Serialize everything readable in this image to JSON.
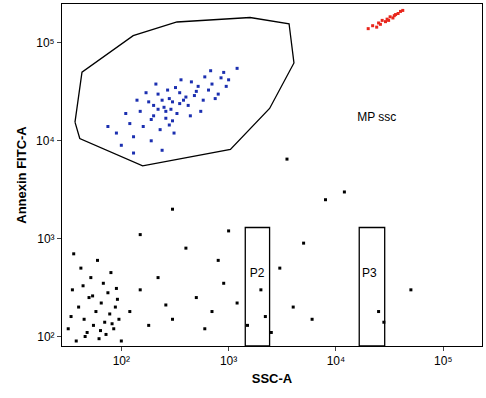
{
  "chart_data": {
    "type": "scatter",
    "x_label": "SSC-A",
    "y_label": "Annexin FITC-A",
    "log": true,
    "grid": false,
    "marker": "square",
    "xlim": [
      28,
      230000
    ],
    "ylim": [
      80,
      250000
    ],
    "xticks": [
      {
        "value": 100,
        "label": "10²"
      },
      {
        "value": 1000,
        "label": "10³"
      },
      {
        "value": 10000,
        "label": "10⁴"
      },
      {
        "value": 100000,
        "label": "10⁵"
      }
    ],
    "yticks": [
      {
        "value": 100,
        "label": "10²"
      },
      {
        "value": 1000,
        "label": "10³"
      },
      {
        "value": 10000,
        "label": "10⁴"
      },
      {
        "value": 100000,
        "label": "10⁵"
      }
    ],
    "series": [
      {
        "color": "#1b2fb0",
        "x": [
          120,
          150,
          180,
          200,
          220,
          250,
          280,
          300,
          320,
          350,
          400,
          450,
          500,
          550,
          600,
          700,
          800,
          900,
          1000,
          1200,
          90,
          100,
          130,
          160,
          190,
          230,
          260,
          290,
          330,
          380,
          420,
          480,
          520,
          650,
          750,
          850,
          110,
          140,
          170,
          210,
          240,
          270,
          310,
          360,
          440,
          580,
          680,
          950,
          75,
          130,
          200,
          240,
          260,
          300,
          190,
          220,
          350,
          280
        ],
        "y": [
          15000,
          20000,
          25000,
          18000,
          30000,
          22000,
          27000,
          16000,
          35000,
          24000,
          28000,
          40000,
          32000,
          20000,
          45000,
          38000,
          30000,
          50000,
          42000,
          55000,
          12000,
          9000,
          11000,
          14000,
          10000,
          13000,
          17000,
          21000,
          19000,
          26000,
          23000,
          29000,
          36000,
          33000,
          27000,
          44000,
          19000,
          26000,
          31000,
          38000,
          8000,
          33000,
          12000,
          42000,
          18000,
          26000,
          52000,
          36000,
          14000,
          7500,
          23000,
          26000,
          20000,
          25000,
          16500,
          21000,
          31000,
          14500
        ]
      },
      {
        "color": "#000000",
        "x": [
          32,
          35,
          38,
          40,
          42,
          45,
          48,
          50,
          52,
          55,
          58,
          60,
          62,
          65,
          68,
          70,
          72,
          75,
          78,
          80,
          85,
          88,
          90,
          95,
          100,
          34,
          36,
          44,
          46,
          54,
          64,
          82,
          92,
          120,
          150,
          180,
          220,
          260,
          300,
          400,
          500,
          600,
          700,
          900,
          1200,
          1500,
          2000,
          2200,
          3000,
          4000,
          5000,
          6000,
          8000,
          1000,
          300,
          150,
          12000,
          50000,
          3500,
          28000,
          25000,
          2500,
          800
        ],
        "y": [
          120,
          300,
          90,
          200,
          500,
          150,
          110,
          250,
          400,
          130,
          180,
          600,
          95,
          220,
          350,
          140,
          105,
          280,
          170,
          450,
          120,
          200,
          310,
          150,
          90,
          160,
          700,
          330,
          100,
          260,
          115,
          135,
          240,
          180,
          300,
          130,
          400,
          210,
          150,
          800,
          250,
          120,
          180,
          350,
          220,
          130,
          300,
          160,
          500,
          200,
          900,
          150,
          2500,
          1200,
          2000,
          1100,
          3000,
          300,
          6500,
          140,
          180,
          110,
          600
        ]
      },
      {
        "color": "#e8261c",
        "x": [
          20000,
          22000,
          25000,
          27000,
          30000,
          32000,
          35000,
          38000,
          40000,
          24000,
          29000,
          34000,
          26000,
          36000,
          42000,
          31000
        ],
        "y": [
          140000,
          150000,
          160000,
          170000,
          175000,
          185000,
          190000,
          200000,
          210000,
          145000,
          165000,
          180000,
          155000,
          195000,
          215000,
          170000
        ]
      }
    ],
    "gates": [
      {
        "label": "MP ssc",
        "shape": "polygon",
        "x": [
          37,
          43,
          129,
          330,
          1585,
          3660,
          4065,
          2410,
          1040,
          158,
          41
        ],
        "y": [
          15500,
          50300,
          118600,
          163700,
          182000,
          157000,
          62400,
          21400,
          8170,
          5550,
          10550
        ],
        "label_x": 15800,
        "label_y": 17300
      },
      {
        "label": "P2",
        "shape": "rectangle",
        "x0": 1430,
        "x1": 2410,
        "y0": 80,
        "y1": 1300,
        "label_x": 1840,
        "label_y": 434
      },
      {
        "label": "P3",
        "shape": "rectangle",
        "x0": 16500,
        "x1": 28500,
        "y0": 80,
        "y1": 1300,
        "label_x": 20500,
        "label_y": 434
      }
    ]
  }
}
